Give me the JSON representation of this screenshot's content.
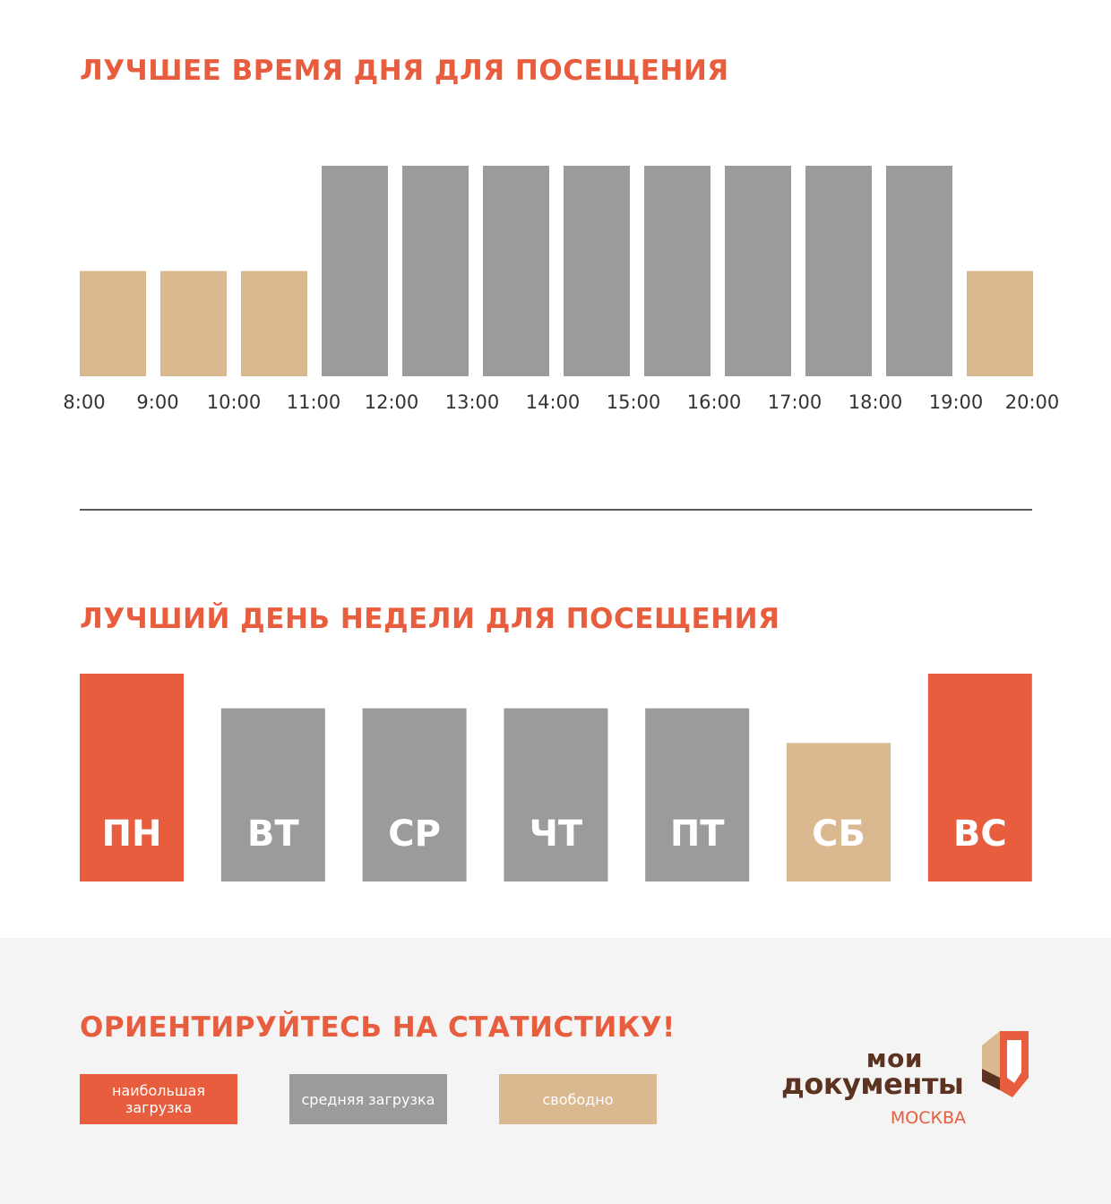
{
  "colors": {
    "high": "#e85d3e",
    "medium": "#9b9b9b",
    "free": "#dbb990",
    "label": "#333333",
    "logo_brown": "#5b3320",
    "logo_orange": "#e85d3e"
  },
  "chart_data": [
    {
      "type": "bar",
      "title": "ЛУЧШЕЕ ВРЕМЯ ДНЯ ДЛЯ ПОСЕЩЕНИЯ",
      "x_ticks": [
        "8:00",
        "9:00",
        "10:00",
        "11:00",
        "12:00",
        "13:00",
        "14:00",
        "15:00",
        "16:00",
        "17:00",
        "18:00",
        "19:00",
        "20:00"
      ],
      "bars": [
        {
          "from": "8:00",
          "to": "9:00",
          "value": 1,
          "level": "free"
        },
        {
          "from": "9:00",
          "to": "10:00",
          "value": 1,
          "level": "free"
        },
        {
          "from": "10:00",
          "to": "11:00",
          "value": 1,
          "level": "free"
        },
        {
          "from": "11:00",
          "to": "12:00",
          "value": 2,
          "level": "medium"
        },
        {
          "from": "12:00",
          "to": "13:00",
          "value": 2,
          "level": "medium"
        },
        {
          "from": "13:00",
          "to": "14:00",
          "value": 2,
          "level": "medium"
        },
        {
          "from": "14:00",
          "to": "15:00",
          "value": 2,
          "level": "medium"
        },
        {
          "from": "15:00",
          "to": "16:00",
          "value": 2,
          "level": "medium"
        },
        {
          "from": "16:00",
          "to": "17:00",
          "value": 2,
          "level": "medium"
        },
        {
          "from": "17:00",
          "to": "18:00",
          "value": 2,
          "level": "medium"
        },
        {
          "from": "18:00",
          "to": "19:00",
          "value": 2,
          "level": "medium"
        },
        {
          "from": "19:00",
          "to": "20:00",
          "value": 1,
          "level": "free"
        }
      ],
      "ylim": [
        0,
        2
      ],
      "grid": false
    },
    {
      "type": "bar",
      "title": "ЛУЧШИЙ ДЕНЬ НЕДЕЛИ ДЛЯ ПОСЕЩЕНИЯ",
      "categories": [
        "ПН",
        "ВТ",
        "СР",
        "ЧТ",
        "ПТ",
        "СБ",
        "ВС"
      ],
      "values": [
        3,
        2.5,
        2.5,
        2.5,
        2.5,
        2,
        3
      ],
      "levels": [
        "high",
        "medium",
        "medium",
        "medium",
        "medium",
        "free",
        "high"
      ],
      "ylim": [
        0,
        3
      ],
      "grid": false
    }
  ],
  "footer": {
    "title": "ОРИЕНТИРУЙТЕСЬ НА СТАТИСТИКУ!",
    "legend": [
      {
        "label": "наибольшая загрузка",
        "level": "high"
      },
      {
        "label": "средняя загрузка",
        "level": "medium"
      },
      {
        "label": "свободно",
        "level": "free"
      }
    ]
  },
  "logo": {
    "line1": "мои",
    "line2": "документы",
    "city": "МОСКВА"
  }
}
